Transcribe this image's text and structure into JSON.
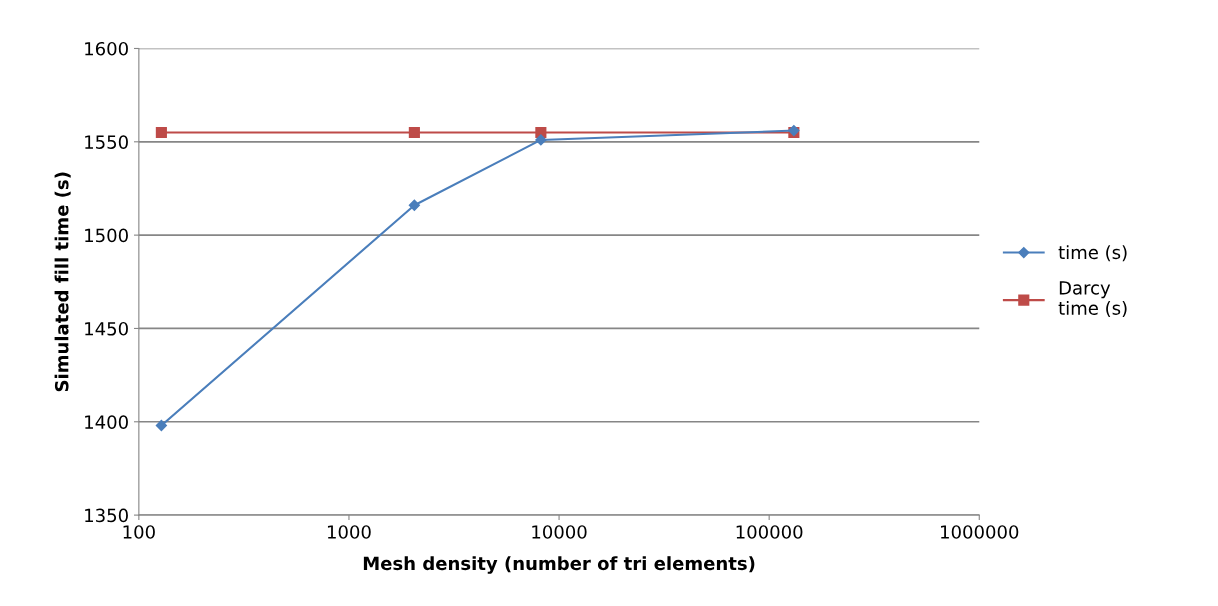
{
  "chart_data": {
    "type": "line",
    "xlabel": "Mesh density (number of tri elements)",
    "ylabel": "Simulated fill time (s)",
    "log": "x",
    "xlim": [
      100,
      1000000
    ],
    "xticks": [
      100,
      1000,
      10000,
      100000,
      1000000
    ],
    "ylim": [
      1350,
      1600
    ],
    "yticks": [
      1350,
      1400,
      1450,
      1500,
      1550,
      1600
    ],
    "grid": "y",
    "legend": "right",
    "series": [
      {
        "name": "time (s)",
        "color": "#4a7ebb",
        "marker": "diamond",
        "x": [
          128,
          2048,
          8192,
          131072
        ],
        "values": [
          1398,
          1516,
          1551,
          1556
        ]
      },
      {
        "name": "Darcy time (s)",
        "color": "#be4b48",
        "marker": "square",
        "x": [
          128,
          2048,
          8192,
          131072
        ],
        "values": [
          1555,
          1555,
          1555,
          1555
        ]
      }
    ]
  }
}
